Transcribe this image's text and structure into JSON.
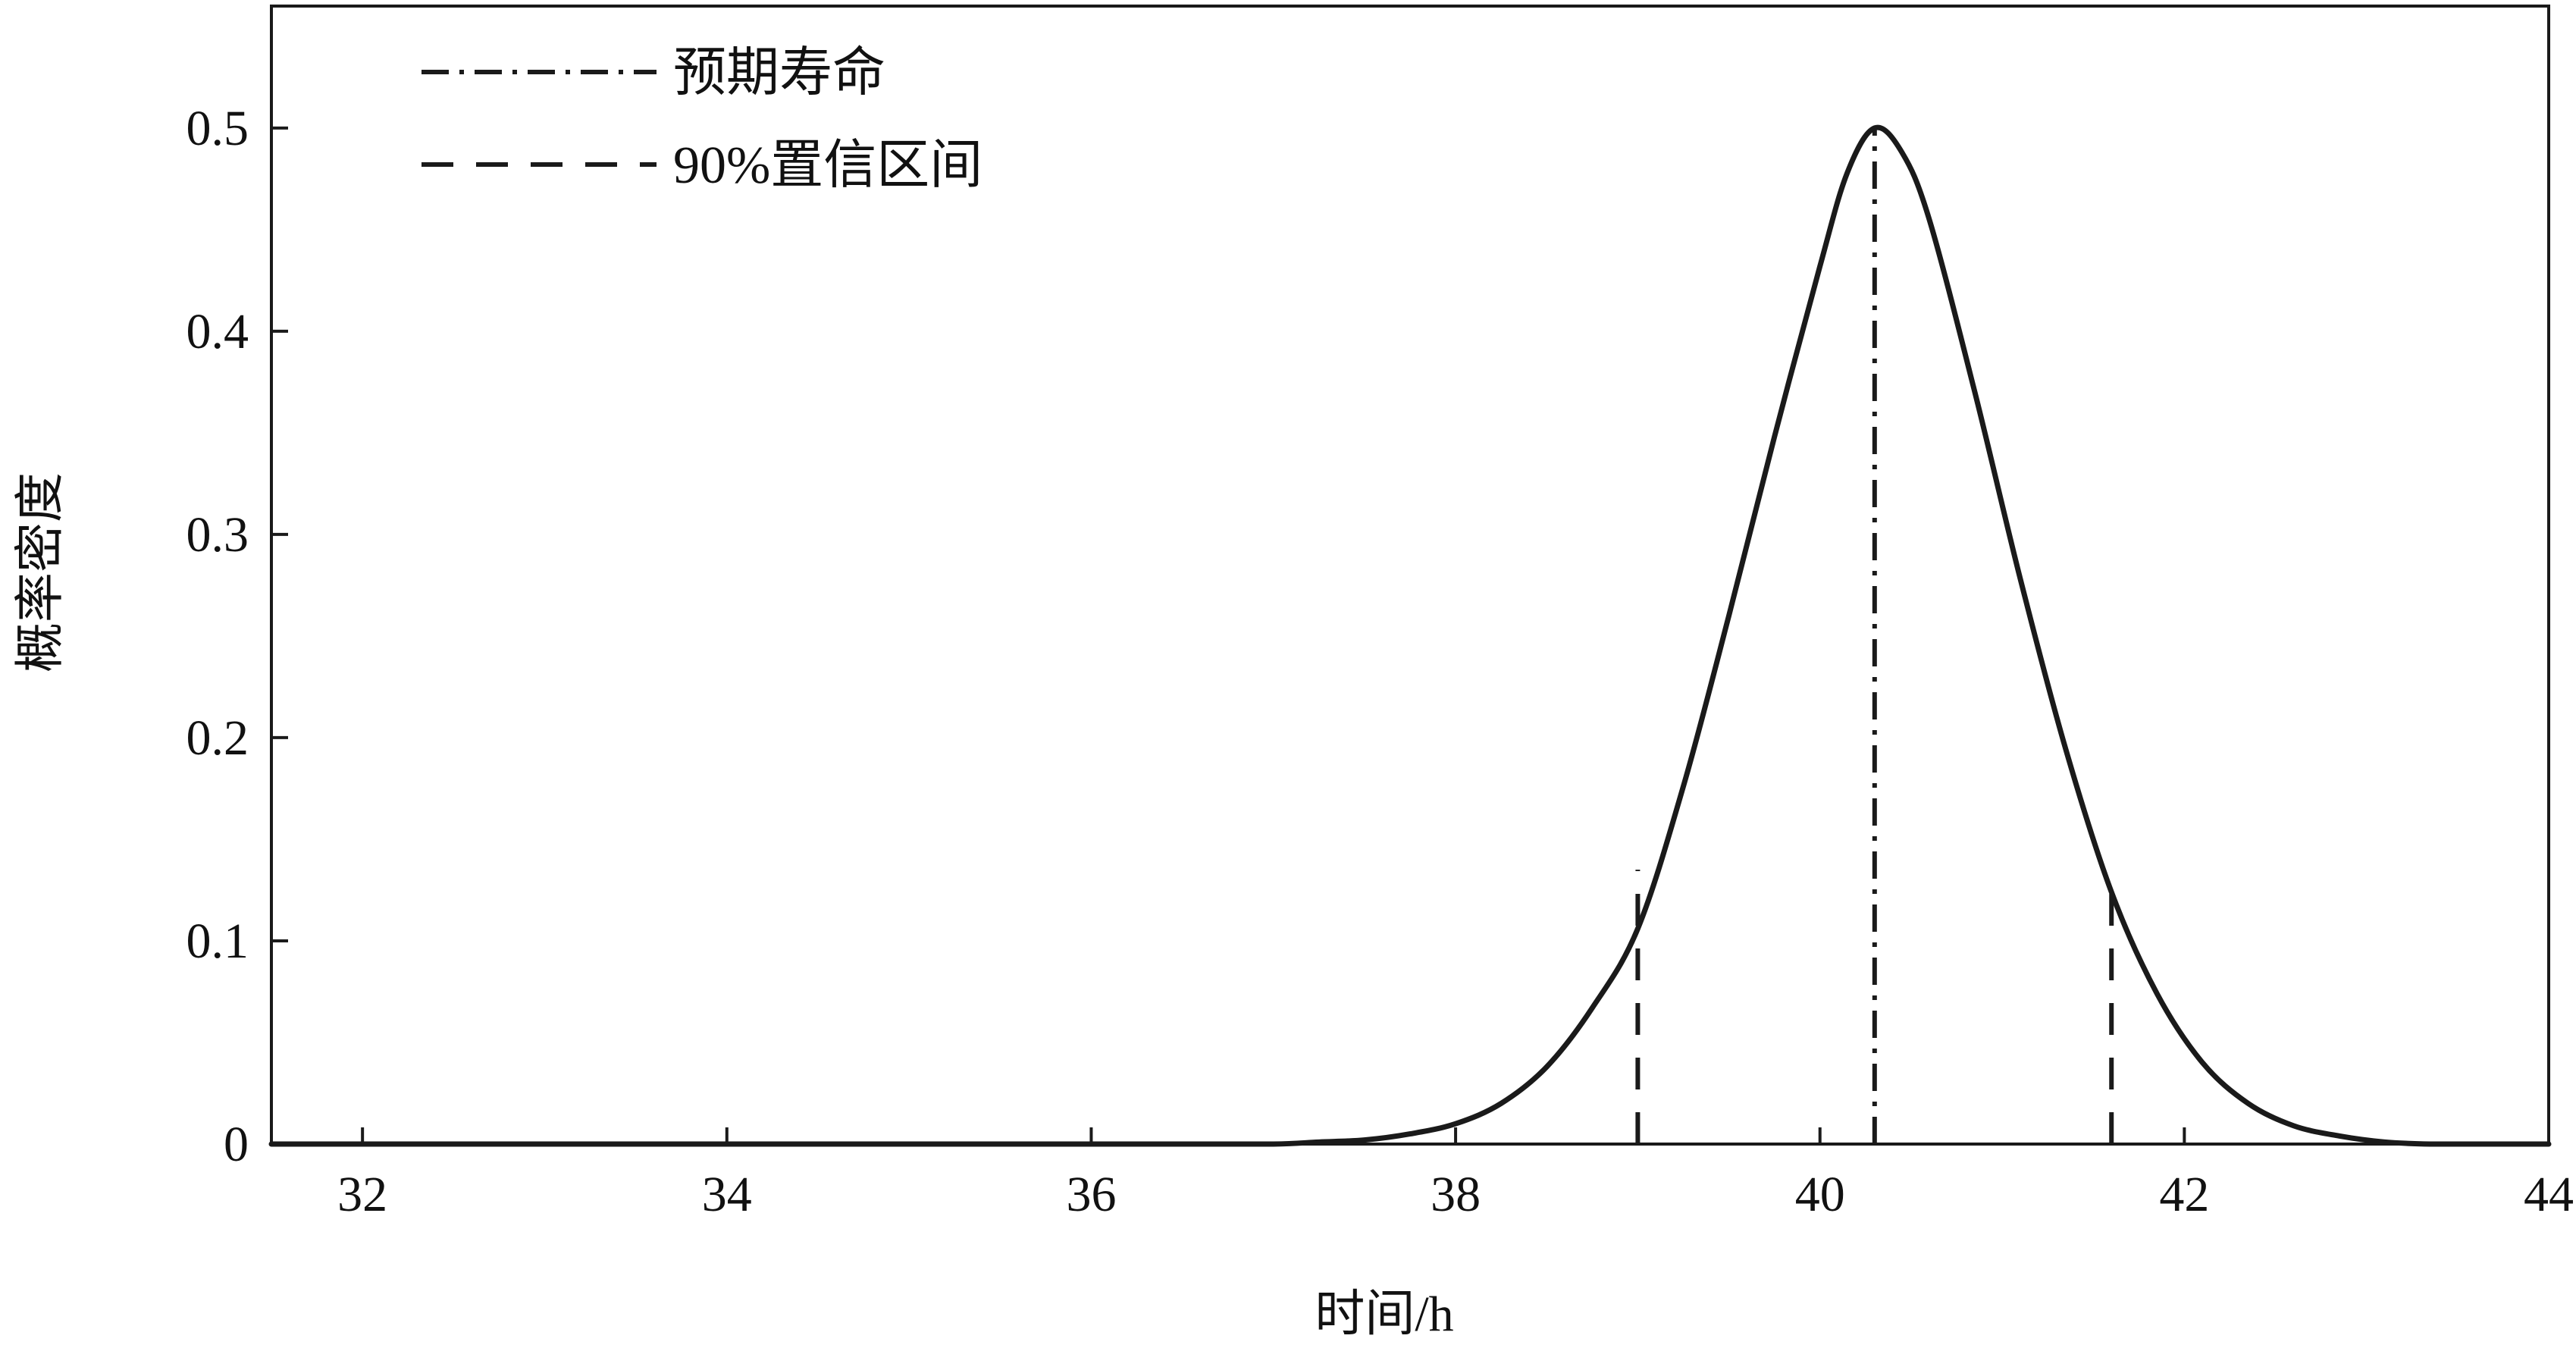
{
  "chart_data": {
    "type": "line",
    "title": "",
    "xlabel": "时间/h",
    "ylabel": "概率密度",
    "xlim": [
      31.5,
      44.0
    ],
    "ylim": [
      0,
      0.56
    ],
    "x_ticks": [
      32,
      34,
      36,
      38,
      40,
      42,
      44
    ],
    "x_tick_labels": [
      "32",
      "34",
      "36",
      "38",
      "40",
      "42",
      "44"
    ],
    "y_ticks": [
      0,
      0.1,
      0.2,
      0.3,
      0.4,
      0.5
    ],
    "y_tick_labels": [
      "0",
      "0.1",
      "0.2",
      "0.3",
      "0.4",
      "0.5"
    ],
    "grid": false,
    "legend_position": "top-left",
    "series": [
      {
        "name": "",
        "style": "solid",
        "color": "#1a1a1a",
        "x": [
          31.5,
          36.0,
          36.5,
          37.0,
          37.25,
          37.5,
          37.75,
          38.0,
          38.25,
          38.5,
          38.75,
          39.0,
          39.25,
          39.5,
          39.75,
          40.0,
          40.15,
          40.3,
          40.45,
          40.6,
          40.85,
          41.1,
          41.35,
          41.6,
          41.85,
          42.1,
          42.35,
          42.6,
          42.85,
          43.1,
          43.35,
          43.6,
          44.0
        ],
        "y": [
          0.0,
          0.0,
          0.0,
          0.0,
          0.001,
          0.002,
          0.005,
          0.01,
          0.02,
          0.038,
          0.067,
          0.106,
          0.176,
          0.26,
          0.348,
          0.432,
          0.478,
          0.5,
          0.488,
          0.455,
          0.37,
          0.278,
          0.194,
          0.124,
          0.074,
          0.04,
          0.02,
          0.009,
          0.004,
          0.001,
          0.0,
          0.0,
          0.0
        ]
      }
    ],
    "reference_lines": [
      {
        "label": "预期寿命",
        "style": "dash-dot",
        "x": 40.3,
        "y_top": 0.5
      },
      {
        "label": "90%置信区间",
        "style": "dashed",
        "x": 39.0,
        "y_top": 0.135
      },
      {
        "label": "90%置信区间",
        "style": "dashed",
        "x": 41.6,
        "y_top": 0.125
      }
    ],
    "legend": [
      {
        "label": "预期寿命",
        "style": "dash-dot"
      },
      {
        "label": "90%置信区间",
        "style": "dashed"
      }
    ]
  }
}
